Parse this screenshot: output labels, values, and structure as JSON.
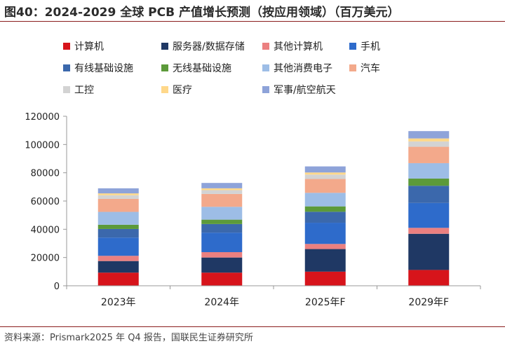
{
  "header": {
    "title": "图40：2024-2029 全球 PCB 产值增长预测（按应用领域）（百万美元）"
  },
  "footer": {
    "source": "资料来源：Prismark2025 年 Q4 报告，国联民生证券研究所"
  },
  "chart_data": {
    "type": "bar",
    "stacked": true,
    "categories": [
      "2023年",
      "2024年",
      "2025年F",
      "2029年F"
    ],
    "ylim": [
      0,
      120000
    ],
    "yticks": [
      0,
      20000,
      40000,
      60000,
      80000,
      100000,
      120000
    ],
    "legend_position": "top",
    "grid": false,
    "series": [
      {
        "name": "计算机",
        "color": "#d7141b",
        "values": [
          9300,
          9300,
          10000,
          11200
        ]
      },
      {
        "name": "服务器/数据存储",
        "color": "#1f3864",
        "values": [
          8200,
          10700,
          16000,
          25600
        ]
      },
      {
        "name": "其他计算机",
        "color": "#eb8080",
        "values": [
          3700,
          3800,
          3600,
          4200
        ]
      },
      {
        "name": "手机",
        "color": "#2e6bcb",
        "values": [
          12900,
          13800,
          15000,
          17600
        ]
      },
      {
        "name": "有线基础设施",
        "color": "#3b68ac",
        "values": [
          6100,
          6100,
          7800,
          12200
        ]
      },
      {
        "name": "无线基础设施",
        "color": "#5c9a3a",
        "values": [
          3000,
          3100,
          3800,
          5100
        ]
      },
      {
        "name": "其他消费电子",
        "color": "#9dbde6",
        "values": [
          9100,
          9100,
          9600,
          10900
        ]
      },
      {
        "name": "汽车",
        "color": "#f3a98b",
        "values": [
          9200,
          9100,
          9800,
          11600
        ]
      },
      {
        "name": "工控",
        "color": "#d3d3d3",
        "values": [
          2600,
          2700,
          3100,
          3800
        ]
      },
      {
        "name": "医疗",
        "color": "#ffd88a",
        "values": [
          1300,
          1300,
          1500,
          2100
        ]
      },
      {
        "name": "军事/航空航天",
        "color": "#8ea3d9",
        "values": [
          3600,
          3800,
          4300,
          5200
        ]
      }
    ]
  }
}
